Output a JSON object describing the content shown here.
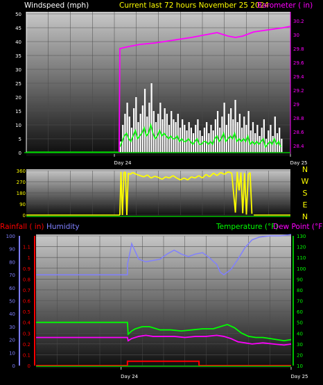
{
  "header": {
    "left_title": "Windspeed (mph)",
    "center_title": "Current last 72 hours November 25 2024",
    "right_title": "Barometer ( in)"
  },
  "bottom_header": {
    "rainfall_label": "Rainfall ( in)",
    "humidity_label": "Humidity",
    "temperature_label": "Temperature (°F)",
    "dewpoint_label": "Dew Point (°F)"
  },
  "colors": {
    "windspeed": "#ffffff",
    "windgust": "#ffffff",
    "windavg": "#00ff00",
    "barometer": "#ff00ff",
    "direction": "#ffff00",
    "rainfall": "#ff0000",
    "humidity": "#8080ff",
    "temperature": "#00ff00",
    "dewpoint": "#ff00ff",
    "rain_axis": "#ff0000",
    "humidity_axis": "#8080ff",
    "temp_axis": "#00ff00",
    "plot_top": "#c8c8c8",
    "plot_bottom": "#0c0c0c"
  },
  "chart_data": [
    {
      "type": "line",
      "name": "wind-barometer",
      "x_ticks": [
        "Day 24",
        "Day 25"
      ],
      "hours": 72,
      "ylim_left": [
        0,
        50
      ],
      "yticks_left": [
        "0",
        "5",
        "10",
        "15",
        "20",
        "25",
        "30",
        "35",
        "40",
        "45",
        "50"
      ],
      "ylim_right": [
        28.3,
        30.3
      ],
      "yticks_right": [
        "28.4",
        "28.6",
        "28.8",
        "29",
        "29.2",
        "29.4",
        "29.6",
        "29.8",
        "30",
        "30.2"
      ],
      "data_start_hour": 25.5,
      "data_end_hour": 70,
      "wind_gust_mph": [
        4,
        10,
        14,
        18,
        13,
        9,
        16,
        20,
        11,
        14,
        17,
        23,
        13,
        18,
        25,
        15,
        11,
        14,
        18,
        12,
        16,
        14,
        10,
        15,
        12,
        11,
        14,
        9,
        12,
        10,
        8,
        11,
        9,
        7,
        10,
        12,
        8,
        6,
        9,
        11,
        7,
        10,
        8,
        12,
        15,
        9,
        13,
        18,
        10,
        14,
        16,
        12,
        19,
        11,
        14,
        9,
        13,
        10,
        15,
        8,
        11,
        7,
        10,
        6,
        9,
        12,
        5,
        8,
        10,
        6,
        13,
        7,
        9,
        5
      ],
      "wind_avg_mph": [
        2,
        4,
        6,
        7,
        5,
        4,
        6,
        8,
        5,
        6,
        7,
        9,
        6,
        7,
        10,
        7,
        5,
        6,
        8,
        6,
        7,
        6,
        5,
        6,
        5,
        5,
        6,
        4,
        5,
        4,
        4,
        5,
        4,
        3,
        4,
        5,
        3,
        3,
        4,
        4,
        3,
        4,
        3,
        5,
        6,
        4,
        5,
        7,
        4,
        5,
        6,
        5,
        7,
        4,
        5,
        4,
        5,
        4,
        6,
        3,
        4,
        3,
        4,
        3,
        4,
        5,
        2,
        3,
        4,
        3,
        5,
        3,
        4,
        2
      ],
      "barometer_in": [
        {
          "h": 25.3,
          "v": 28.3
        },
        {
          "h": 25.5,
          "v": 29.8
        },
        {
          "h": 28,
          "v": 29.83
        },
        {
          "h": 31,
          "v": 29.86
        },
        {
          "h": 35,
          "v": 29.88
        },
        {
          "h": 40,
          "v": 29.92
        },
        {
          "h": 45,
          "v": 29.96
        },
        {
          "h": 49,
          "v": 30.0
        },
        {
          "h": 52,
          "v": 30.03
        },
        {
          "h": 55,
          "v": 29.98
        },
        {
          "h": 57,
          "v": 29.96
        },
        {
          "h": 59,
          "v": 29.98
        },
        {
          "h": 62,
          "v": 30.04
        },
        {
          "h": 66,
          "v": 30.07
        },
        {
          "h": 70,
          "v": 30.1
        },
        {
          "h": 72,
          "v": 30.12
        }
      ]
    },
    {
      "type": "scatter",
      "name": "wind-direction",
      "ylim": [
        0,
        360
      ],
      "yticks": [
        "0",
        "90",
        "180",
        "270",
        "360"
      ],
      "compass_labels": [
        "N",
        "W",
        "S",
        "E",
        "N"
      ],
      "direction_deg": [
        {
          "h": 25.5,
          "v": 0
        },
        {
          "h": 25.8,
          "v": 350
        },
        {
          "h": 26.2,
          "v": 0
        },
        {
          "h": 26.6,
          "v": 345
        },
        {
          "h": 27,
          "v": 350
        },
        {
          "h": 27.4,
          "v": 0
        },
        {
          "h": 27.8,
          "v": 340
        },
        {
          "h": 28.3,
          "v": 330
        },
        {
          "h": 29,
          "v": 345
        },
        {
          "h": 30,
          "v": 330
        },
        {
          "h": 31,
          "v": 320
        },
        {
          "h": 32,
          "v": 310
        },
        {
          "h": 33,
          "v": 325
        },
        {
          "h": 34,
          "v": 300
        },
        {
          "h": 35,
          "v": 315
        },
        {
          "h": 36,
          "v": 305
        },
        {
          "h": 37,
          "v": 290
        },
        {
          "h": 38,
          "v": 310
        },
        {
          "h": 39,
          "v": 300
        },
        {
          "h": 40,
          "v": 320
        },
        {
          "h": 41,
          "v": 300
        },
        {
          "h": 42,
          "v": 285
        },
        {
          "h": 43,
          "v": 300
        },
        {
          "h": 44,
          "v": 285
        },
        {
          "h": 45,
          "v": 310
        },
        {
          "h": 46,
          "v": 300
        },
        {
          "h": 47,
          "v": 320
        },
        {
          "h": 48,
          "v": 300
        },
        {
          "h": 49,
          "v": 330
        },
        {
          "h": 50,
          "v": 310
        },
        {
          "h": 51,
          "v": 340
        },
        {
          "h": 52,
          "v": 320
        },
        {
          "h": 53,
          "v": 345
        },
        {
          "h": 54,
          "v": 330
        },
        {
          "h": 55,
          "v": 350
        },
        {
          "h": 56,
          "v": 340
        },
        {
          "h": 57,
          "v": 20
        },
        {
          "h": 57.5,
          "v": 350
        },
        {
          "h": 58,
          "v": 200
        },
        {
          "h": 58.5,
          "v": 345
        },
        {
          "h": 59,
          "v": 15
        },
        {
          "h": 59.5,
          "v": 340
        },
        {
          "h": 60,
          "v": 5
        },
        {
          "h": 60.5,
          "v": 330
        },
        {
          "h": 61,
          "v": 345
        },
        {
          "h": 61.5,
          "v": 10
        }
      ]
    },
    {
      "type": "line",
      "name": "temp-humidity-rain",
      "x_ticks": [
        "Day 24",
        "Day 25"
      ],
      "ylim_rain": [
        0,
        1.2
      ],
      "yticks_rain": [
        "0",
        "0.1",
        "0.2",
        "0.3",
        "0.4",
        "0.5",
        "0.6",
        "0.7",
        "0.8",
        "0.9",
        "1",
        "1.1"
      ],
      "ylim_humidity": [
        0,
        100
      ],
      "yticks_humidity": [
        "0",
        "10",
        "20",
        "30",
        "40",
        "50",
        "60",
        "70",
        "80",
        "90",
        "100"
      ],
      "ylim_temp": [
        10,
        130
      ],
      "yticks_temp": [
        "10",
        "20",
        "30",
        "40",
        "50",
        "60",
        "70",
        "80",
        "90",
        "100",
        "110",
        "120",
        "130"
      ],
      "humidity_pct": [
        {
          "h": 0,
          "v": 70
        },
        {
          "h": 25.8,
          "v": 70
        },
        {
          "h": 25.8,
          "v": 78
        },
        {
          "h": 26.5,
          "v": 87
        },
        {
          "h": 27,
          "v": 94
        },
        {
          "h": 28,
          "v": 88
        },
        {
          "h": 29,
          "v": 82
        },
        {
          "h": 31,
          "v": 80
        },
        {
          "h": 33,
          "v": 81
        },
        {
          "h": 35,
          "v": 82
        },
        {
          "h": 37,
          "v": 86
        },
        {
          "h": 39,
          "v": 89
        },
        {
          "h": 41,
          "v": 86
        },
        {
          "h": 43,
          "v": 84
        },
        {
          "h": 45,
          "v": 86
        },
        {
          "h": 47,
          "v": 87
        },
        {
          "h": 49,
          "v": 83
        },
        {
          "h": 51,
          "v": 78
        },
        {
          "h": 52,
          "v": 72
        },
        {
          "h": 53,
          "v": 70
        },
        {
          "h": 55,
          "v": 74
        },
        {
          "h": 57,
          "v": 82
        },
        {
          "h": 59,
          "v": 91
        },
        {
          "h": 61,
          "v": 97
        },
        {
          "h": 63,
          "v": 99
        },
        {
          "h": 66,
          "v": 100
        },
        {
          "h": 69,
          "v": 100
        },
        {
          "h": 72,
          "v": 101
        }
      ],
      "temperature_f": [
        {
          "h": 0,
          "v": 50
        },
        {
          "h": 25.8,
          "v": 50
        },
        {
          "h": 26,
          "v": 39
        },
        {
          "h": 27,
          "v": 42
        },
        {
          "h": 28,
          "v": 44
        },
        {
          "h": 30,
          "v": 46
        },
        {
          "h": 32,
          "v": 46
        },
        {
          "h": 35,
          "v": 43
        },
        {
          "h": 38,
          "v": 43
        },
        {
          "h": 41,
          "v": 42
        },
        {
          "h": 44,
          "v": 43
        },
        {
          "h": 47,
          "v": 44
        },
        {
          "h": 50,
          "v": 44
        },
        {
          "h": 52,
          "v": 46
        },
        {
          "h": 54,
          "v": 48
        },
        {
          "h": 56,
          "v": 45
        },
        {
          "h": 58,
          "v": 40
        },
        {
          "h": 60,
          "v": 37
        },
        {
          "h": 62,
          "v": 36
        },
        {
          "h": 64,
          "v": 36
        },
        {
          "h": 66,
          "v": 35
        },
        {
          "h": 68,
          "v": 34
        },
        {
          "h": 70,
          "v": 33
        },
        {
          "h": 72,
          "v": 34
        }
      ],
      "dewpoint_f": [
        {
          "h": 0,
          "v": 36
        },
        {
          "h": 25.8,
          "v": 36
        },
        {
          "h": 26,
          "v": 33
        },
        {
          "h": 27,
          "v": 35
        },
        {
          "h": 29,
          "v": 37
        },
        {
          "h": 31,
          "v": 38
        },
        {
          "h": 33,
          "v": 37
        },
        {
          "h": 36,
          "v": 37
        },
        {
          "h": 39,
          "v": 37
        },
        {
          "h": 42,
          "v": 36
        },
        {
          "h": 45,
          "v": 37
        },
        {
          "h": 48,
          "v": 37
        },
        {
          "h": 51,
          "v": 38
        },
        {
          "h": 53,
          "v": 37
        },
        {
          "h": 55,
          "v": 35
        },
        {
          "h": 57,
          "v": 32
        },
        {
          "h": 59,
          "v": 31
        },
        {
          "h": 61,
          "v": 30
        },
        {
          "h": 64,
          "v": 31
        },
        {
          "h": 67,
          "v": 30
        },
        {
          "h": 70,
          "v": 29
        },
        {
          "h": 72,
          "v": 30
        }
      ],
      "rainfall_in": [
        {
          "h": 0,
          "v": 0
        },
        {
          "h": 25.8,
          "v": 0
        },
        {
          "h": 25.8,
          "v": 0.04
        },
        {
          "h": 46,
          "v": 0.04
        },
        {
          "h": 46,
          "v": 0
        },
        {
          "h": 72,
          "v": 0
        }
      ]
    }
  ]
}
